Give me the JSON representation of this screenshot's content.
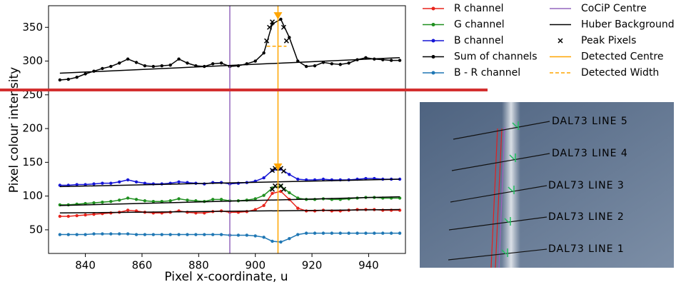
{
  "chart_data": {
    "type": "line",
    "xlabel": "Pixel x-coordinate, u",
    "ylabel": "Pixel colour intensity",
    "xlim": [
      827,
      953
    ],
    "xticks": [
      840,
      860,
      880,
      900,
      920,
      940
    ],
    "ylim": [
      15,
      382
    ],
    "yticks": [
      50,
      100,
      150,
      200,
      250,
      300,
      350
    ],
    "x": [
      831,
      834,
      837,
      840,
      843,
      846,
      849,
      852,
      855,
      858,
      861,
      864,
      867,
      870,
      873,
      876,
      879,
      882,
      885,
      888,
      891,
      894,
      897,
      900,
      903,
      906,
      909,
      912,
      915,
      918,
      921,
      924,
      927,
      930,
      933,
      936,
      939,
      942,
      945,
      948,
      951
    ],
    "series": [
      {
        "name": "R channel",
        "color": "#e8231b",
        "marker": "o",
        "values": [
          70,
          70,
          71,
          72,
          73,
          74,
          75,
          76,
          79,
          78,
          76,
          75,
          75,
          76,
          78,
          76,
          75,
          75,
          77,
          78,
          76,
          76,
          77,
          80,
          86,
          104,
          107,
          95,
          82,
          78,
          78,
          79,
          78,
          78,
          79,
          80,
          80,
          80,
          79,
          79,
          79
        ]
      },
      {
        "name": "G channel",
        "color": "#1f8f1f",
        "marker": "o",
        "values": [
          87,
          87,
          88,
          89,
          90,
          91,
          92,
          94,
          97,
          95,
          93,
          92,
          92,
          93,
          96,
          94,
          93,
          92,
          95,
          95,
          93,
          93,
          94,
          96,
          101,
          112,
          115,
          105,
          97,
          95,
          95,
          96,
          95,
          95,
          96,
          97,
          98,
          98,
          97,
          97,
          97
        ]
      },
      {
        "name": "B channel",
        "color": "#1515d6",
        "marker": "o",
        "values": [
          116,
          116,
          117,
          117,
          118,
          119,
          119,
          121,
          124,
          121,
          119,
          118,
          118,
          119,
          121,
          120,
          119,
          118,
          120,
          120,
          118,
          119,
          120,
          122,
          127,
          138,
          140,
          132,
          125,
          124,
          124,
          125,
          124,
          124,
          124,
          125,
          126,
          126,
          125,
          125,
          125
        ]
      },
      {
        "name": "Sum of channels",
        "color": "#000000",
        "marker": "o",
        "values": [
          272,
          273,
          276,
          281,
          285,
          289,
          292,
          297,
          303,
          298,
          293,
          292,
          293,
          294,
          303,
          297,
          293,
          292,
          296,
          297,
          292,
          293,
          296,
          300,
          312,
          355,
          362,
          335,
          300,
          292,
          293,
          298,
          296,
          295,
          297,
          302,
          305,
          303,
          302,
          301,
          301
        ]
      },
      {
        "name": "B - R channel",
        "color": "#1f77b4",
        "marker": "o",
        "values": [
          43,
          43,
          43,
          43,
          44,
          44,
          44,
          44,
          44,
          43,
          43,
          43,
          43,
          43,
          43,
          43,
          43,
          43,
          43,
          43,
          42,
          42,
          42,
          41,
          39,
          33,
          32,
          37,
          43,
          45,
          45,
          45,
          45,
          45,
          45,
          45,
          45,
          45,
          45,
          45,
          45
        ]
      },
      {
        "name": "CoCiP Centre",
        "color": "#9467bd",
        "vertical_x": 891
      },
      {
        "name": "Huber Background",
        "color": "#000000",
        "segments": [
          {
            "x": [
              831,
              951
            ],
            "values": [
              282,
              305
            ]
          },
          {
            "x": [
              831,
              951
            ],
            "values": [
              114,
              125
            ]
          },
          {
            "x": [
              831,
              951
            ],
            "values": [
              86,
              99
            ]
          },
          {
            "x": [
              831,
              951
            ],
            "values": [
              75,
              80
            ]
          }
        ]
      },
      {
        "name": "Peak Pixels",
        "color": "#000000",
        "marker": "x",
        "points_x": [
          904,
          905,
          906,
          910,
          911,
          906,
          907,
          909,
          910,
          906,
          907,
          909,
          910
        ],
        "points": [
          330,
          350,
          358,
          350,
          330,
          110,
          115,
          115,
          110,
          138,
          141,
          141,
          137
        ]
      },
      {
        "name": "Detected Centre",
        "color": "#ffa500",
        "vertical_x": 908,
        "peak_values": [
          367,
          143
        ]
      },
      {
        "name": "Detected Width",
        "color": "#ffa500",
        "dashed": true,
        "x": [
          904,
          911
        ],
        "values": [
          322,
          322
        ]
      }
    ]
  },
  "inset": {
    "labels": [
      "DAL73 LINE 5",
      "DAL73 LINE 4",
      "DAL73 LINE 3",
      "DAL73 LINE 2",
      "DAL73 LINE 1"
    ]
  }
}
